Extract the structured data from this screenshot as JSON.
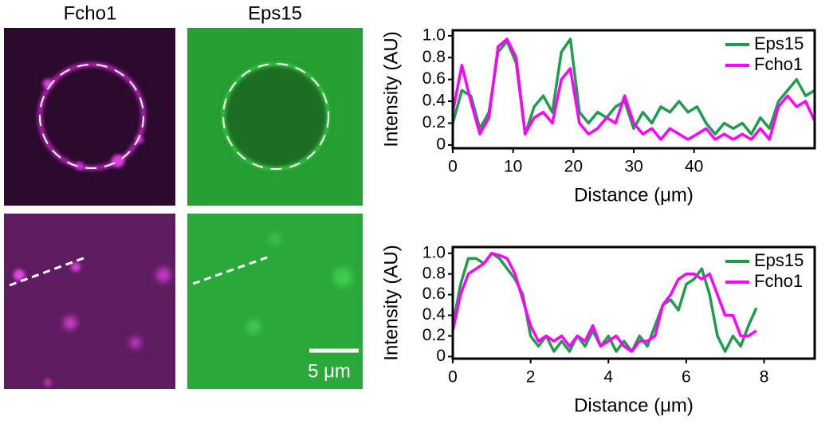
{
  "panels": {
    "column_labels": [
      "Fcho1",
      "Eps15"
    ],
    "scale_bar": "5 μm"
  },
  "chart_data": [
    {
      "type": "line",
      "x_label": "Distance (μm)",
      "y_label": "Intensity (AU)",
      "x": [
        0,
        1.5,
        3,
        4.5,
        6,
        7.5,
        9,
        10.5,
        12,
        13.5,
        15,
        16.5,
        18,
        19.5,
        21,
        22.5,
        24,
        25.5,
        27,
        28.5,
        30,
        31.5,
        33,
        34.5,
        36,
        37.5,
        39,
        40.5,
        42,
        43.5,
        45,
        46.5,
        48,
        49.5,
        51,
        52.5,
        54,
        55.5,
        57,
        58.5,
        60
      ],
      "series": [
        {
          "name": "Eps15",
          "color": "#1f9d4c",
          "values": [
            0.2,
            0.5,
            0.45,
            0.15,
            0.3,
            0.85,
            0.95,
            0.75,
            0.1,
            0.35,
            0.45,
            0.3,
            0.85,
            0.97,
            0.3,
            0.2,
            0.3,
            0.25,
            0.35,
            0.4,
            0.15,
            0.3,
            0.2,
            0.35,
            0.3,
            0.4,
            0.3,
            0.35,
            0.2,
            0.1,
            0.2,
            0.15,
            0.2,
            0.1,
            0.25,
            0.15,
            0.4,
            0.5,
            0.6,
            0.45,
            0.5
          ]
        },
        {
          "name": "Fcho1",
          "color": "#ff00ff",
          "values": [
            0.3,
            0.73,
            0.4,
            0.1,
            0.25,
            0.9,
            0.97,
            0.8,
            0.1,
            0.25,
            0.3,
            0.2,
            0.6,
            0.7,
            0.2,
            0.1,
            0.15,
            0.25,
            0.2,
            0.45,
            0.2,
            0.1,
            0.15,
            0.05,
            0.15,
            0.1,
            0.05,
            0.1,
            0.15,
            0.05,
            0.1,
            0.05,
            0.1,
            0.05,
            0.15,
            0.05,
            0.35,
            0.45,
            0.35,
            0.4,
            0.22
          ]
        }
      ],
      "xlim": [
        0,
        60
      ],
      "xticks": [
        0,
        10,
        20,
        30,
        40
      ],
      "ylim": [
        -0.03,
        1.05
      ],
      "yticks": [
        0,
        0.2,
        0.4,
        0.6,
        0.8,
        {
          "value": 1,
          "label": "1.0"
        }
      ],
      "legend": "upper right"
    },
    {
      "type": "line",
      "x_label": "Distance (μm)",
      "y_label": "Intensity (AU)",
      "x": [
        0,
        0.2,
        0.4,
        0.6,
        0.8,
        1.0,
        1.2,
        1.4,
        1.6,
        1.8,
        2.0,
        2.2,
        2.4,
        2.6,
        2.8,
        3.0,
        3.2,
        3.4,
        3.6,
        3.8,
        4.0,
        4.2,
        4.4,
        4.6,
        4.8,
        5.0,
        5.2,
        5.4,
        5.6,
        5.8,
        6.0,
        6.2,
        6.4,
        6.6,
        6.8,
        7.0,
        7.2,
        7.4,
        7.6,
        7.8
      ],
      "series": [
        {
          "name": "Eps15",
          "color": "#1f9d4c",
          "values": [
            0.3,
            0.7,
            0.95,
            0.95,
            0.9,
            1.0,
            0.95,
            0.85,
            0.75,
            0.6,
            0.2,
            0.1,
            0.2,
            0.05,
            0.15,
            0.05,
            0.2,
            0.1,
            0.25,
            0.1,
            0.2,
            0.05,
            0.15,
            0.05,
            0.2,
            0.1,
            0.3,
            0.5,
            0.55,
            0.45,
            0.7,
            0.75,
            0.85,
            0.6,
            0.2,
            0.05,
            0.2,
            0.1,
            0.3,
            0.47
          ]
        },
        {
          "name": "Fcho1",
          "color": "#ff00ff",
          "values": [
            0.25,
            0.6,
            0.8,
            0.85,
            0.9,
            1.0,
            0.98,
            0.95,
            0.8,
            0.55,
            0.3,
            0.15,
            0.2,
            0.15,
            0.2,
            0.1,
            0.2,
            0.15,
            0.3,
            0.1,
            0.15,
            0.2,
            0.1,
            0.05,
            0.15,
            0.15,
            0.2,
            0.5,
            0.6,
            0.75,
            0.8,
            0.8,
            0.75,
            0.8,
            0.6,
            0.4,
            0.4,
            0.2,
            0.2,
            0.25
          ]
        }
      ],
      "xlim": [
        0,
        9.3
      ],
      "xticks": [
        0,
        2,
        4,
        6,
        8
      ],
      "ylim": [
        -0.02,
        1.06
      ],
      "yticks": [
        0,
        0.2,
        0.4,
        0.6,
        0.8,
        {
          "value": 1,
          "label": "1.0"
        }
      ],
      "legend": "upper right"
    }
  ]
}
